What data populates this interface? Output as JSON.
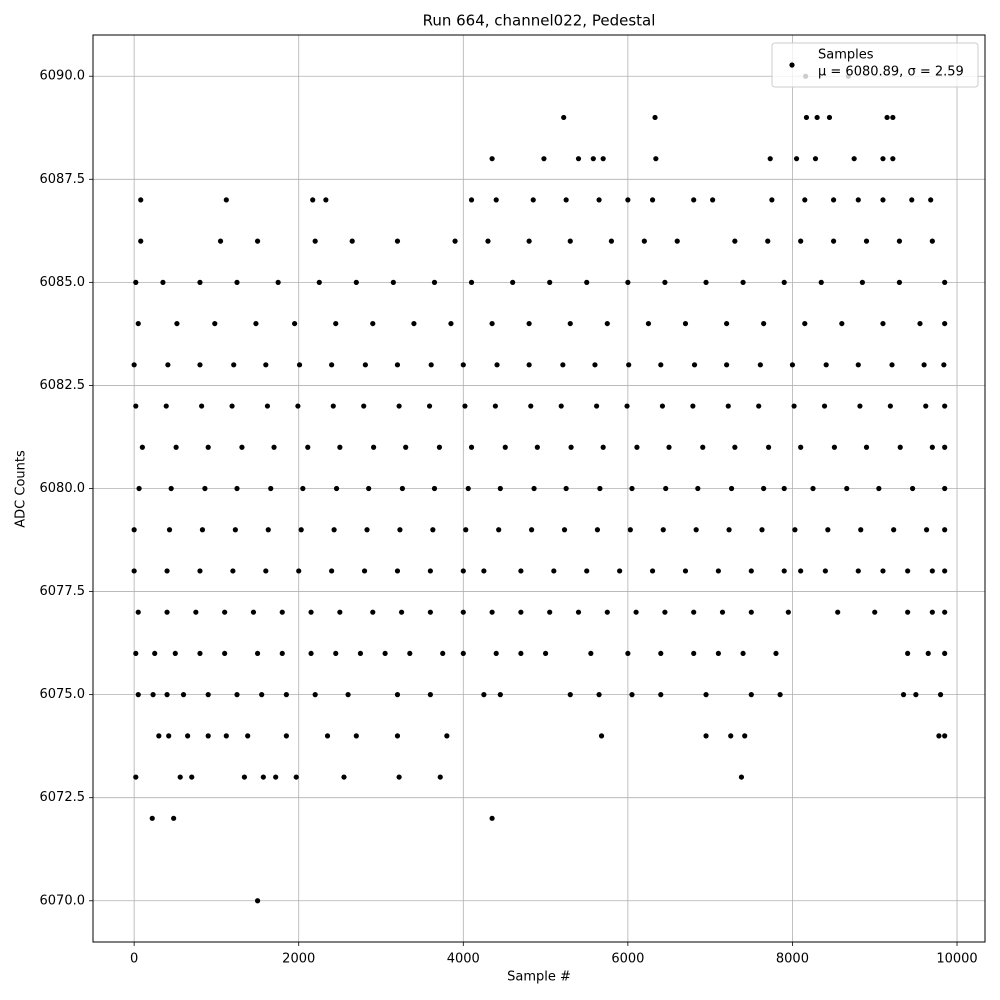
{
  "chart_data": {
    "type": "scatter",
    "title": "Run 664, channel022, Pedestal",
    "x_label": "Sample #",
    "y_label": "ADC Counts",
    "xlim": [
      -500,
      10340
    ],
    "ylim": [
      6069,
      6091
    ],
    "xticks": [
      0,
      2000,
      4000,
      6000,
      8000,
      10000
    ],
    "yticks": [
      {
        "value": 6070,
        "label": "6070.0"
      },
      {
        "value": 6072.5,
        "label": "6072.5"
      },
      {
        "value": 6075,
        "label": "6075.0"
      },
      {
        "value": 6077.5,
        "label": "6077.5"
      },
      {
        "value": 6080,
        "label": "6080.0"
      },
      {
        "value": 6082.5,
        "label": "6082.5"
      },
      {
        "value": 6085,
        "label": "6085.0"
      },
      {
        "value": 6087.5,
        "label": "6087.5"
      },
      {
        "value": 6090,
        "label": "6090.0"
      }
    ],
    "grid": true,
    "legend": "upper right",
    "series": [
      {
        "name": "Samples",
        "stats_label": "μ = 6080.89, σ = 2.59",
        "color": "#000000",
        "x": [
          1500,
          220,
          480,
          4350,
          20,
          560,
          700,
          1340,
          1570,
          1720,
          1970,
          2550,
          3220,
          3720,
          7380,
          300,
          420,
          650,
          900,
          1120,
          1380,
          1850,
          2350,
          2700,
          3200,
          3800,
          5680,
          6950,
          7250,
          7420,
          9780,
          9850,
          50,
          230,
          400,
          600,
          900,
          1250,
          1550,
          1850,
          2200,
          2600,
          3200,
          3600,
          4250,
          4450,
          5300,
          5650,
          6050,
          6400,
          6950,
          7500,
          7850,
          9350,
          9500,
          9800,
          20,
          250,
          500,
          800,
          1100,
          1500,
          1800,
          2150,
          2450,
          2750,
          3050,
          3350,
          3750,
          4000,
          4400,
          4700,
          5000,
          5550,
          6000,
          6400,
          6800,
          7100,
          7400,
          7800,
          9400,
          9650,
          9850,
          50,
          400,
          750,
          1100,
          1450,
          1800,
          2150,
          2500,
          2900,
          3250,
          3600,
          4000,
          4350,
          4700,
          5050,
          5400,
          5750,
          6100,
          6450,
          6800,
          7150,
          7500,
          7950,
          8550,
          9000,
          9400,
          9700,
          9850,
          0,
          400,
          800,
          1200,
          1600,
          2000,
          2400,
          2800,
          3200,
          3600,
          4000,
          4250,
          4700,
          5100,
          5500,
          5900,
          6300,
          6700,
          7100,
          7500,
          7900,
          8100,
          8400,
          8800,
          9100,
          9400,
          9700,
          9850,
          0,
          430,
          830,
          1230,
          1630,
          2030,
          2430,
          2830,
          3230,
          3630,
          4030,
          4430,
          4830,
          5230,
          5630,
          6030,
          6430,
          6830,
          7230,
          7630,
          8030,
          8430,
          8830,
          9230,
          9630,
          9850,
          60,
          450,
          860,
          1250,
          1660,
          2050,
          2460,
          2850,
          3260,
          3650,
          4060,
          4450,
          4860,
          5250,
          5660,
          6050,
          6460,
          6850,
          7260,
          7650,
          7900,
          8250,
          8660,
          9050,
          9460,
          9850,
          100,
          510,
          900,
          1310,
          1700,
          2110,
          2500,
          2910,
          3300,
          3710,
          4100,
          4510,
          4900,
          5310,
          5700,
          6110,
          6500,
          6910,
          7300,
          7710,
          8100,
          8510,
          8900,
          9310,
          9700,
          9850,
          20,
          390,
          820,
          1190,
          1620,
          1990,
          2420,
          2790,
          3220,
          3590,
          4020,
          4390,
          4820,
          5190,
          5620,
          5990,
          6420,
          6790,
          7220,
          7590,
          8020,
          8390,
          8820,
          9190,
          9620,
          9850,
          0,
          410,
          800,
          1210,
          1600,
          2010,
          2400,
          2810,
          3200,
          3610,
          4000,
          4410,
          4800,
          5210,
          5600,
          6010,
          6400,
          6810,
          7200,
          7610,
          8000,
          8410,
          8800,
          9210,
          9600,
          9840,
          50,
          520,
          980,
          1480,
          1950,
          2450,
          2900,
          3400,
          3850,
          4350,
          4800,
          5300,
          5750,
          6250,
          6700,
          7200,
          7650,
          8150,
          8600,
          9100,
          9550,
          9850,
          20,
          350,
          800,
          1250,
          1750,
          2250,
          2700,
          3150,
          3650,
          4100,
          4600,
          5050,
          5500,
          6000,
          6450,
          6950,
          7400,
          7900,
          8350,
          8850,
          9300,
          9850,
          80,
          1050,
          1500,
          2200,
          2650,
          3200,
          3900,
          4300,
          4800,
          5300,
          5800,
          6200,
          6600,
          7300,
          7700,
          8100,
          8500,
          8900,
          9300,
          9700,
          80,
          1120,
          2170,
          2330,
          4100,
          4400,
          4850,
          5250,
          5650,
          6000,
          6300,
          6800,
          7030,
          7750,
          8150,
          8500,
          8800,
          9100,
          9450,
          9680,
          4350,
          4980,
          5400,
          5580,
          5700,
          6340,
          7730,
          8050,
          8280,
          8750,
          9100,
          9220,
          5220,
          6330,
          8170,
          8300,
          8450,
          9150,
          9220,
          8160,
          8680
        ],
        "values": [
          6070,
          6072,
          6072,
          6072,
          6073,
          6073,
          6073,
          6073,
          6073,
          6073,
          6073,
          6073,
          6073,
          6073,
          6073,
          6074,
          6074,
          6074,
          6074,
          6074,
          6074,
          6074,
          6074,
          6074,
          6074,
          6074,
          6074,
          6074,
          6074,
          6074,
          6074,
          6074,
          6075,
          6075,
          6075,
          6075,
          6075,
          6075,
          6075,
          6075,
          6075,
          6075,
          6075,
          6075,
          6075,
          6075,
          6075,
          6075,
          6075,
          6075,
          6075,
          6075,
          6075,
          6075,
          6075,
          6075,
          6076,
          6076,
          6076,
          6076,
          6076,
          6076,
          6076,
          6076,
          6076,
          6076,
          6076,
          6076,
          6076,
          6076,
          6076,
          6076,
          6076,
          6076,
          6076,
          6076,
          6076,
          6076,
          6076,
          6076,
          6076,
          6076,
          6076,
          6077,
          6077,
          6077,
          6077,
          6077,
          6077,
          6077,
          6077,
          6077,
          6077,
          6077,
          6077,
          6077,
          6077,
          6077,
          6077,
          6077,
          6077,
          6077,
          6077,
          6077,
          6077,
          6077,
          6077,
          6077,
          6077,
          6077,
          6077,
          6078,
          6078,
          6078,
          6078,
          6078,
          6078,
          6078,
          6078,
          6078,
          6078,
          6078,
          6078,
          6078,
          6078,
          6078,
          6078,
          6078,
          6078,
          6078,
          6078,
          6078,
          6078,
          6078,
          6078,
          6078,
          6078,
          6078,
          6078,
          6079,
          6079,
          6079,
          6079,
          6079,
          6079,
          6079,
          6079,
          6079,
          6079,
          6079,
          6079,
          6079,
          6079,
          6079,
          6079,
          6079,
          6079,
          6079,
          6079,
          6079,
          6079,
          6079,
          6079,
          6079,
          6079,
          6080,
          6080,
          6080,
          6080,
          6080,
          6080,
          6080,
          6080,
          6080,
          6080,
          6080,
          6080,
          6080,
          6080,
          6080,
          6080,
          6080,
          6080,
          6080,
          6080,
          6080,
          6080,
          6080,
          6080,
          6080,
          6080,
          6081,
          6081,
          6081,
          6081,
          6081,
          6081,
          6081,
          6081,
          6081,
          6081,
          6081,
          6081,
          6081,
          6081,
          6081,
          6081,
          6081,
          6081,
          6081,
          6081,
          6081,
          6081,
          6081,
          6081,
          6081,
          6081,
          6082,
          6082,
          6082,
          6082,
          6082,
          6082,
          6082,
          6082,
          6082,
          6082,
          6082,
          6082,
          6082,
          6082,
          6082,
          6082,
          6082,
          6082,
          6082,
          6082,
          6082,
          6082,
          6082,
          6082,
          6082,
          6082,
          6083,
          6083,
          6083,
          6083,
          6083,
          6083,
          6083,
          6083,
          6083,
          6083,
          6083,
          6083,
          6083,
          6083,
          6083,
          6083,
          6083,
          6083,
          6083,
          6083,
          6083,
          6083,
          6083,
          6083,
          6083,
          6083,
          6084,
          6084,
          6084,
          6084,
          6084,
          6084,
          6084,
          6084,
          6084,
          6084,
          6084,
          6084,
          6084,
          6084,
          6084,
          6084,
          6084,
          6084,
          6084,
          6084,
          6084,
          6084,
          6085,
          6085,
          6085,
          6085,
          6085,
          6085,
          6085,
          6085,
          6085,
          6085,
          6085,
          6085,
          6085,
          6085,
          6085,
          6085,
          6085,
          6085,
          6085,
          6085,
          6085,
          6085,
          6086,
          6086,
          6086,
          6086,
          6086,
          6086,
          6086,
          6086,
          6086,
          6086,
          6086,
          6086,
          6086,
          6086,
          6086,
          6086,
          6086,
          6086,
          6086,
          6086,
          6087,
          6087,
          6087,
          6087,
          6087,
          6087,
          6087,
          6087,
          6087,
          6087,
          6087,
          6087,
          6087,
          6087,
          6087,
          6087,
          6087,
          6087,
          6087,
          6087,
          6088,
          6088,
          6088,
          6088,
          6088,
          6088,
          6088,
          6088,
          6088,
          6088,
          6088,
          6088,
          6089,
          6089,
          6089,
          6089,
          6089,
          6089,
          6089,
          6090,
          6090
        ]
      }
    ]
  }
}
